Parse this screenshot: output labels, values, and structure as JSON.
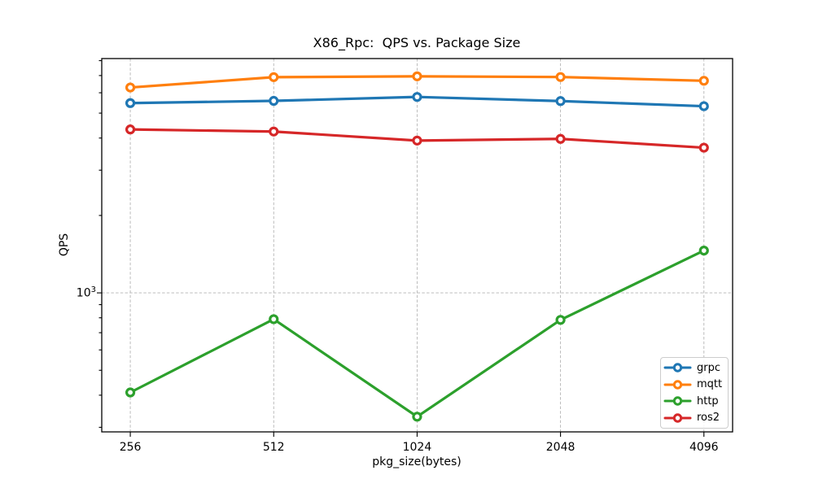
{
  "chart_data": {
    "type": "line",
    "title": "X86_Rpc:  QPS vs. Package Size",
    "xlabel": "pkg_size(bytes)",
    "ylabel": "QPS",
    "x_scale": "log2",
    "y_scale": "log10",
    "x": [
      256,
      512,
      1024,
      2048,
      4096
    ],
    "x_tick_labels": [
      "256",
      "512",
      "1024",
      "2048",
      "4096"
    ],
    "xlim": [
      223,
      4705
    ],
    "ylim": [
      288,
      8150
    ],
    "y_major_ticks": [
      {
        "value": 1000,
        "base": "10",
        "exponent": "3"
      }
    ],
    "y_minor_tick_values": [
      300,
      400,
      500,
      600,
      700,
      800,
      900,
      2000,
      3000,
      4000,
      5000,
      6000,
      7000,
      8000
    ],
    "grid": {
      "show": true,
      "line_style": "dashed",
      "color": "#b0b0b0"
    },
    "legend": {
      "position": "lower right"
    },
    "marker": "open-circle",
    "series": [
      {
        "name": "grpc",
        "color": "#1f77b4",
        "values": [
          5470,
          5580,
          5780,
          5570,
          5320
        ]
      },
      {
        "name": "mqtt",
        "color": "#ff7f0e",
        "values": [
          6290,
          6900,
          6950,
          6910,
          6680
        ]
      },
      {
        "name": "http",
        "color": "#2ca02c",
        "values": [
          410,
          790,
          330,
          785,
          1460
        ]
      },
      {
        "name": "ros2",
        "color": "#d62728",
        "values": [
          4320,
          4240,
          3910,
          3970,
          3670
        ]
      }
    ]
  }
}
